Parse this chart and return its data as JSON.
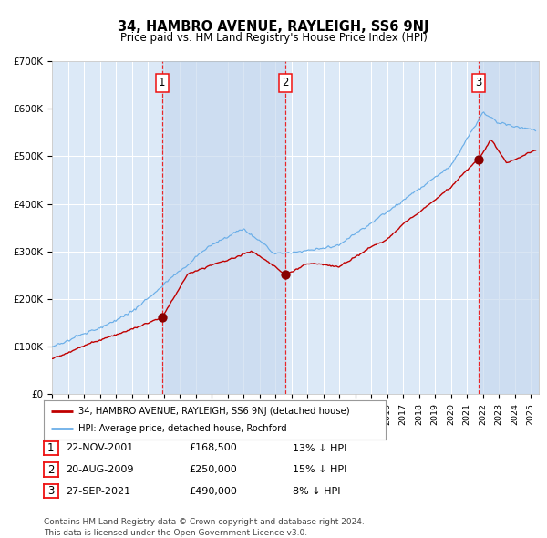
{
  "title": "34, HAMBRO AVENUE, RAYLEIGH, SS6 9NJ",
  "subtitle": "Price paid vs. HM Land Registry's House Price Index (HPI)",
  "footnote": "Contains HM Land Registry data © Crown copyright and database right 2024.\nThis data is licensed under the Open Government Licence v3.0.",
  "legend_line1": "34, HAMBRO AVENUE, RAYLEIGH, SS6 9NJ (detached house)",
  "legend_line2": "HPI: Average price, detached house, Rochford",
  "transactions": [
    {
      "num": 1,
      "date": "22-NOV-2001",
      "price": "£168,500",
      "hpi": "13% ↓ HPI",
      "x_year": 2001.9
    },
    {
      "num": 2,
      "date": "20-AUG-2009",
      "price": "£250,000",
      "hpi": "15% ↓ HPI",
      "x_year": 2009.64
    },
    {
      "num": 3,
      "date": "27-SEP-2021",
      "price": "£490,000",
      "hpi": "8% ↓ HPI",
      "x_year": 2021.75
    }
  ],
  "hpi_color": "#6aaee8",
  "price_color": "#C00000",
  "plot_bg": "#dce9f7",
  "ylim": [
    0,
    700000
  ],
  "xlim_start": 1995.0,
  "xlim_end": 2025.5,
  "grid_color": "#FFFFFF",
  "dashed_line_color": "#EE1111",
  "transaction_dot_color": "#880000",
  "shaded_band_color": "#c5d8ee",
  "shaded_band_alpha": 0.65
}
